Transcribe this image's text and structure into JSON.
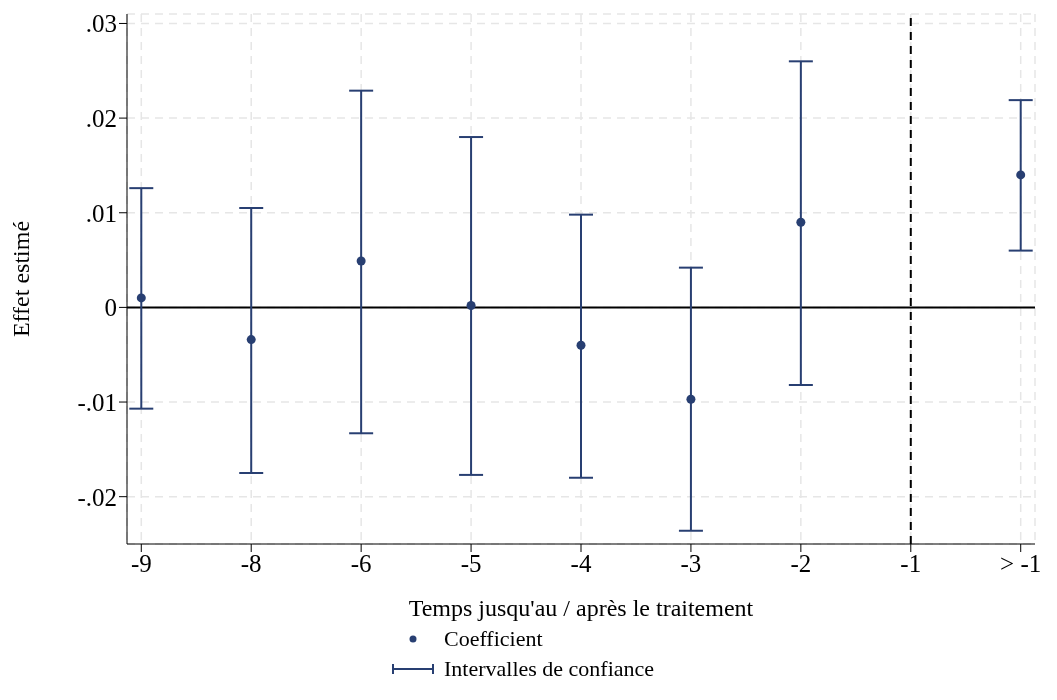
{
  "chart_data": {
    "type": "scatter",
    "xlabel": "Temps jusqu'au / après le traitement",
    "ylabel": "Effet estimé",
    "categories": [
      "-9",
      "-8",
      "-6",
      "-5",
      "-4",
      "-3",
      "-2",
      "-1",
      "> -1"
    ],
    "series": [
      {
        "name": "Coefficient",
        "color": "#283f72",
        "values": [
          0.001,
          -0.0034,
          0.0049,
          0.0002,
          -0.004,
          -0.0097,
          0.009,
          null,
          0.014
        ],
        "errors": [
          [
            -0.0107,
            0.0126
          ],
          [
            -0.0175,
            0.0105
          ],
          [
            -0.0133,
            0.0229
          ],
          [
            -0.0177,
            0.018
          ],
          [
            -0.018,
            0.0098
          ],
          [
            -0.0236,
            0.0042
          ],
          [
            -0.0082,
            0.026
          ],
          null,
          [
            0.006,
            0.0219
          ]
        ]
      }
    ],
    "annotations": [
      "Intervalles de confiance"
    ],
    "ylim": [
      -0.025,
      0.031
    ],
    "yticks": [
      {
        "value": -0.02,
        "label": "-.02"
      },
      {
        "value": -0.01,
        "label": "-.01"
      },
      0,
      {
        "value": 0.01,
        "label": ".01"
      },
      {
        "value": 0.02,
        "label": ".02"
      },
      {
        "value": 0.03,
        "label": ".03"
      }
    ],
    "ref_lines": [
      {
        "axis": "y",
        "value": 0,
        "color": "#000000",
        "line_style": "solid"
      },
      {
        "axis": "x",
        "value": "-1",
        "color": "#000000",
        "line_style": "dashed"
      }
    ],
    "grid": true,
    "legend": "bottom",
    "marker": "circle"
  }
}
